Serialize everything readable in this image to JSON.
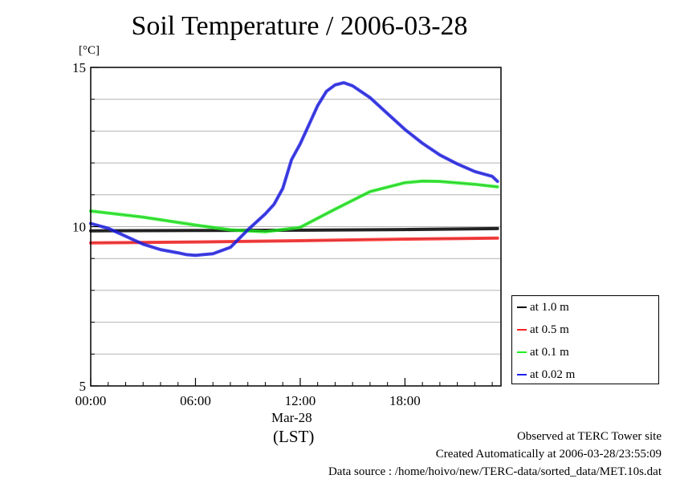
{
  "title": "Soil Temperature / 2006-03-28",
  "y_unit": "[°C]",
  "x_date_label": "Mar-28",
  "x_timezone_label": "(LST)",
  "footer": {
    "line1": "Observed at TERC Tower site",
    "line2": "Created Automatically at 2006-03-28/23:55:09",
    "line3": "Data source : /home/hoivo/new/TERC-data/sorted_data/MET.10s.dat"
  },
  "chart_data": {
    "type": "line",
    "title": "Soil Temperature / 2006-03-28",
    "xlabel": "(LST)",
    "ylabel": "[°C]",
    "xlim": [
      0,
      23.5
    ],
    "ylim": [
      5,
      15
    ],
    "x_ticks": [
      {
        "value": 0,
        "label": "00:00"
      },
      {
        "value": 6,
        "label": "06:00"
      },
      {
        "value": 12,
        "label": "12:00"
      },
      {
        "value": 18,
        "label": "18:00"
      }
    ],
    "y_ticks": [
      {
        "value": 5,
        "label": "5"
      },
      {
        "value": 10,
        "label": "10"
      },
      {
        "value": 15,
        "label": "15"
      }
    ],
    "grid": true,
    "legend_position": "right",
    "series": [
      {
        "name": "at 1.0 m",
        "color": "#000000",
        "x": [
          0,
          6,
          12,
          18,
          23.3
        ],
        "y": [
          9.87,
          9.88,
          9.89,
          9.91,
          9.94
        ]
      },
      {
        "name": "at 0.5 m",
        "color": "#ff2020",
        "x": [
          0,
          6,
          12,
          18,
          23.3
        ],
        "y": [
          9.49,
          9.52,
          9.56,
          9.61,
          9.64
        ]
      },
      {
        "name": "at 0.1 m",
        "color": "#20ee20",
        "x": [
          0,
          3,
          6,
          8,
          10,
          12,
          14,
          16,
          18,
          19,
          20,
          22,
          23.3
        ],
        "y": [
          10.49,
          10.3,
          10.05,
          9.9,
          9.84,
          9.98,
          10.55,
          11.1,
          11.38,
          11.43,
          11.42,
          11.33,
          11.25
        ]
      },
      {
        "name": "at 0.02 m",
        "color": "#2020ee",
        "x": [
          0,
          1,
          2,
          3,
          4,
          5,
          5.5,
          6,
          7,
          8,
          9,
          10,
          10.5,
          11,
          11.5,
          12,
          13,
          13.5,
          14,
          14.5,
          15,
          16,
          17,
          18,
          19,
          20,
          21,
          22,
          23,
          23.3
        ],
        "y": [
          10.1,
          9.95,
          9.7,
          9.45,
          9.28,
          9.18,
          9.12,
          9.1,
          9.15,
          9.35,
          9.9,
          10.4,
          10.7,
          11.2,
          12.1,
          12.6,
          13.8,
          14.25,
          14.45,
          14.52,
          14.42,
          14.05,
          13.55,
          13.05,
          12.62,
          12.25,
          11.97,
          11.73,
          11.58,
          11.42
        ]
      }
    ]
  }
}
